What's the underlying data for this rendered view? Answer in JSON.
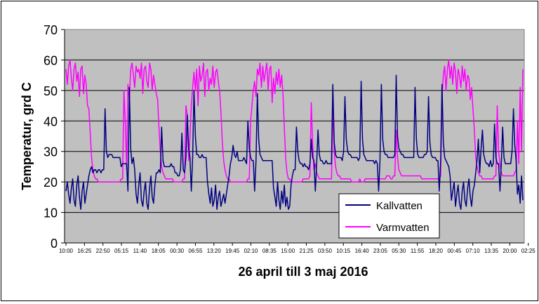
{
  "chart_data": {
    "type": "line",
    "xlabel": "26 april till 3 maj 2016",
    "ylabel": "Temperatur, grd C",
    "ylim": [
      0,
      70
    ],
    "yticks": [
      0,
      10,
      20,
      30,
      40,
      50,
      60,
      70
    ],
    "xticks": [
      "10:00",
      "16:25",
      "22:50",
      "05:15",
      "11:40",
      "18:05",
      "00:30",
      "06:55",
      "13:20",
      "19:45",
      "02:10",
      "08:35",
      "15:00",
      "21:25",
      "03:50",
      "10:15",
      "16:40",
      "23:05",
      "05:30",
      "11:55",
      "18:20",
      "00:45",
      "07:10",
      "13:35",
      "20:00",
      "02:25"
    ],
    "grid": true,
    "plot_background": "#C0C0C0",
    "legend_position": "lower-right",
    "series": [
      {
        "name": "Kallvatten",
        "color": "#000080",
        "values": [
          {
            "day": "day-1",
            "start": 17,
            "values": [
              20,
              16,
              13,
              18,
              21,
              14,
              12,
              19,
              22,
              15,
              11,
              17,
              20,
              13,
              16,
              19,
              22,
              24,
              25,
              23,
              24,
              24,
              23,
              24,
              24,
              23,
              24,
              24,
              44,
              30,
              28,
              29,
              29,
              29,
              28,
              28,
              28,
              28,
              28,
              28,
              25,
              26,
              26,
              26,
              26
            ]
          },
          {
            "day": "day-2",
            "start": 17,
            "values": [
              51,
              31,
              26,
              28,
              24,
              16,
              13,
              19,
              23,
              14,
              12,
              17,
              20,
              13,
              11,
              18,
              22,
              15,
              13,
              19,
              23,
              23,
              24,
              23,
              38,
              27,
              25,
              25,
              25,
              25,
              25,
              26,
              25,
              25,
              23,
              23,
              22,
              22,
              24,
              36,
              24,
              23,
              28,
              42,
              31,
              28
            ]
          },
          {
            "day": "day-3",
            "start": 17,
            "values": [
              28,
              50,
              35,
              29,
              29,
              28,
              28,
              29,
              28,
              28,
              28,
              20,
              16,
              13,
              18,
              12,
              14,
              19,
              11,
              15,
              17,
              12,
              14,
              16,
              13,
              16,
              19,
              22,
              26,
              28,
              32,
              29,
              28,
              30,
              27,
              27,
              27,
              27,
              28,
              27,
              26,
              40,
              31,
              28,
              27,
              27
            ]
          },
          {
            "day": "day-4",
            "start": 17,
            "values": [
              27,
              49,
              34,
              29,
              28,
              27,
              27,
              27,
              27,
              27,
              27,
              27,
              27,
              18,
              15,
              12,
              20,
              14,
              11,
              17,
              13,
              19,
              12,
              15,
              11,
              12,
              19,
              22,
              24,
              24,
              38,
              30,
              27,
              26,
              26,
              25,
              26,
              25,
              25,
              24,
              26,
              34,
              28,
              27
            ]
          },
          {
            "day": "day-5",
            "start": 17,
            "values": [
              26,
              37,
              29,
              27,
              27,
              26,
              26,
              27,
              26,
              26,
              26,
              26,
              52,
              33,
              29,
              28,
              28,
              28,
              28,
              27,
              30,
              48,
              34,
              30,
              29,
              29,
              28,
              28,
              28,
              28,
              28,
              27,
              28,
              53,
              34,
              29,
              28,
              27,
              27,
              27,
              27,
              27,
              27,
              26,
              27,
              26
            ]
          },
          {
            "day": "day-6",
            "start": 17,
            "values": [
              27,
              52,
              34,
              30,
              29,
              29,
              28,
              28,
              28,
              28,
              28,
              29,
              55,
              35,
              31,
              30,
              29,
              29,
              28,
              28,
              28,
              28,
              28,
              28,
              28,
              28,
              51,
              34,
              29,
              28,
              28,
              28,
              28,
              29,
              29,
              30,
              48,
              33,
              29,
              28,
              28,
              28,
              27,
              27
            ]
          },
          {
            "day": "day-7",
            "start": 17,
            "values": [
              27,
              52,
              33,
              28,
              27,
              26,
              25,
              22,
              14,
              17,
              20,
              12,
              16,
              19,
              13,
              11,
              17,
              20,
              14,
              12,
              18,
              21,
              15,
              12,
              17,
              19,
              23,
              27,
              34,
              23,
              31,
              37,
              29,
              27,
              26,
              26,
              25,
              27,
              25,
              26,
              39,
              28,
              26,
              26
            ]
          },
          {
            "day": "day-8",
            "start": 17,
            "values": [
              26,
              38,
              28,
              26,
              26,
              26,
              26,
              26,
              30,
              44,
              32,
              27,
              16,
              19,
              13,
              22,
              14
            ]
          }
        ]
      },
      {
        "name": "Varmvatten",
        "color": "#FF00FF",
        "values": [
          {
            "day": "day-1",
            "start": 57,
            "values": [
              52,
              58,
              60,
              54,
              50,
              57,
              59,
              53,
              56,
              48,
              57,
              58,
              49,
              55,
              52,
              45,
              44,
              36,
              28,
              24,
              22,
              21,
              21,
              20,
              20,
              20,
              20,
              20,
              20,
              20,
              20,
              20,
              20,
              20,
              20,
              20,
              20,
              20,
              20,
              20,
              21,
              21,
              50,
              40,
              24
            ]
          },
          {
            "day": "day-2",
            "start": 52,
            "values": [
              47,
              57,
              59,
              55,
              51,
              58,
              56,
              57,
              54,
              59,
              49,
              57,
              58,
              53,
              51,
              59,
              57,
              50,
              55,
              52,
              49,
              47,
              38,
              30,
              25,
              23,
              22,
              21,
              21,
              21,
              21,
              21,
              21,
              20,
              20,
              20,
              20,
              20,
              20,
              20,
              21,
              21,
              45,
              42,
              27,
              35
            ]
          },
          {
            "day": "day-3",
            "start": 45,
            "values": [
              51,
              56,
              50,
              57,
              45,
              58,
              53,
              55,
              59,
              48,
              56,
              57,
              50,
              54,
              52,
              58,
              51,
              56,
              57,
              53,
              50,
              43,
              33,
              27,
              24,
              22,
              21,
              21,
              20,
              20,
              20,
              20,
              20,
              20,
              20,
              20,
              20,
              20,
              20,
              20,
              20,
              21,
              21,
              40,
              45,
              50
            ]
          },
          {
            "day": "day-4",
            "start": 53,
            "values": [
              48,
              57,
              55,
              59,
              51,
              58,
              53,
              56,
              59,
              50,
              57,
              58,
              46,
              54,
              49,
              56,
              52,
              57,
              51,
              55,
              49,
              38,
              28,
              23,
              21,
              21,
              20,
              20,
              20,
              20,
              20,
              20,
              20,
              20,
              20,
              21,
              21,
              21,
              21,
              21,
              22,
              46,
              33,
              24
            ]
          },
          {
            "day": "day-5",
            "start": 26,
            "values": [
              23,
              22,
              21,
              21,
              21,
              21,
              21,
              21,
              21,
              21,
              21,
              21,
              45,
              30,
              25,
              23,
              22,
              22,
              21,
              21,
              21,
              21,
              21,
              21,
              21,
              21,
              20,
              20,
              20,
              20,
              20,
              20,
              21,
              20,
              20,
              20,
              21,
              21,
              21,
              21,
              21,
              21,
              21,
              21,
              21,
              21
            ]
          },
          {
            "day": "day-6",
            "start": 21,
            "values": [
              21,
              21,
              21,
              21,
              21,
              22,
              22,
              22,
              21,
              21,
              22,
              22,
              37,
              28,
              24,
              23,
              22,
              22,
              22,
              22,
              22,
              22,
              22,
              22,
              22,
              22,
              22,
              22,
              22,
              22,
              22,
              21,
              21,
              21,
              21,
              21,
              21,
              21,
              21,
              21,
              21,
              21,
              21,
              21,
              21
            ]
          },
          {
            "day": "day-7",
            "start": 22,
            "values": [
              48,
              55,
              58,
              50,
              57,
              60,
              54,
              58,
              52,
              59,
              56,
              49,
              57,
              55,
              51,
              58,
              53,
              57,
              50,
              55,
              54,
              47,
              51,
              44,
              37,
              28,
              25,
              23,
              22,
              22,
              21,
              21,
              21,
              21,
              21,
              21,
              21,
              21,
              21,
              22,
              22,
              45,
              30,
              26
            ]
          },
          {
            "day": "day-8",
            "start": 23,
            "values": [
              22,
              22,
              22,
              22,
              22,
              22,
              22,
              22,
              22,
              23,
              24,
              40,
              26,
              51,
              30,
              57
            ]
          }
        ]
      }
    ]
  }
}
